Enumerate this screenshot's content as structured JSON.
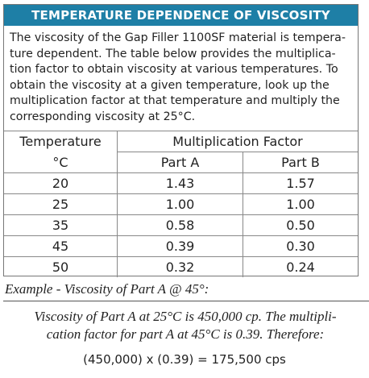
{
  "header": {
    "title": "TEMPERATURE DEPENDENCE OF VISCOSITY"
  },
  "intro": {
    "lines": [
      "The viscosity of the Gap Filler 1100SF material is tempera-",
      "ture dependent. The table below provides the multiplica-",
      "tion factor to obtain viscosity at various temperatures. To",
      "obtain the viscosity at a given temperature, look up the",
      "multiplication factor at that temperature and multiply the",
      "corresponding viscosity at 25°C."
    ]
  },
  "table": {
    "header": [
      "Temperature",
      "Multiplication Factor"
    ],
    "subheader": [
      "°C",
      "Part A",
      "Part B"
    ],
    "rows": [
      [
        "20",
        "1.43",
        "1.57"
      ],
      [
        "25",
        "1.00",
        "1.00"
      ],
      [
        "35",
        "0.58",
        "0.50"
      ],
      [
        "45",
        "0.39",
        "0.30"
      ],
      [
        "50",
        "0.32",
        "0.24"
      ]
    ]
  },
  "example": {
    "title": "Example - Viscosity of Part A @ 45°:",
    "lines": [
      "Viscosity of Part A at 25°C is 450,000 cp. The multipli-",
      "cation factor for part A at 45°C is 0.39. Therefore:"
    ],
    "formula": "(450,000) x (0.39) = 175,500 cps"
  }
}
